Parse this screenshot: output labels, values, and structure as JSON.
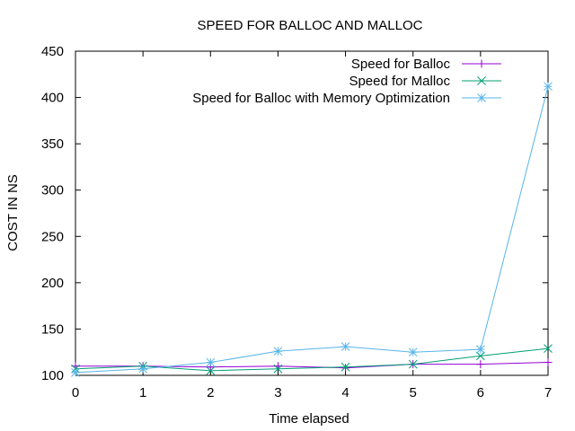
{
  "chart_data": {
    "type": "line",
    "title": "SPEED FOR BALLOC AND MALLOC",
    "xlabel": "Time elapsed",
    "ylabel": "COST IN NS",
    "xlim": [
      0,
      7
    ],
    "ylim": [
      100,
      450
    ],
    "x_ticks": [
      "0",
      "1",
      "2",
      "3",
      "4",
      "5",
      "6",
      "7"
    ],
    "y_ticks": [
      "100",
      "150",
      "200",
      "250",
      "300",
      "350",
      "400",
      "450"
    ],
    "grid": false,
    "legend_position": "top-right",
    "x": [
      0,
      1,
      2,
      3,
      4,
      5,
      6,
      7
    ],
    "series": [
      {
        "name": "Speed for Balloc",
        "color": "#9400d3",
        "marker": "plus",
        "values": [
          110,
          110,
          109,
          110,
          108,
          112,
          112,
          114
        ]
      },
      {
        "name": "Speed for Malloc",
        "color": "#009e73",
        "marker": "cross",
        "values": [
          107,
          110,
          105,
          107,
          109,
          112,
          121,
          129
        ]
      },
      {
        "name": "Speed for Balloc with Memory Optimization",
        "color": "#56b4e9",
        "marker": "star",
        "values": [
          103,
          107,
          114,
          126,
          131,
          125,
          128,
          412
        ]
      }
    ]
  }
}
